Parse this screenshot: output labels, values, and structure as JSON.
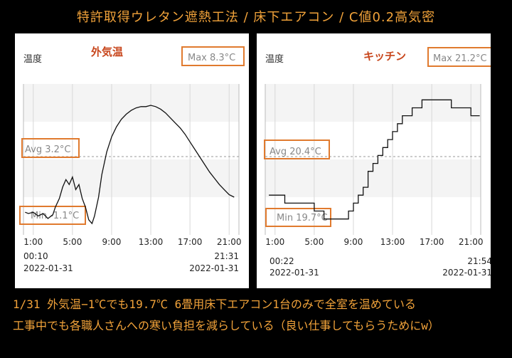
{
  "header": {
    "title": "特許取得ウレタン遮熱工法 / 床下エアコン / C値0.2高気密"
  },
  "caption": {
    "line1": "1/31  外気温−1℃でも19.7℃  6畳用床下エアコン1台のみで全室を温めている",
    "line2": "工事中でも各職人さんへの寒い負担を減らしている（良い仕事してもらうためにw）"
  },
  "colors": {
    "accent": "#f2a33a",
    "box_border": "#e07a2e",
    "panel_title": "#c8461c",
    "line": "#111111"
  },
  "chart_data": [
    {
      "type": "line",
      "title": "外気温",
      "ylabel": "温度",
      "max_label": "Max 8.3°C",
      "avg_label": "Avg 3.2°C",
      "min_label": "Min -1.1°C",
      "x_ticks": [
        "1:00",
        "5:00",
        "9:00",
        "13:00",
        "17:00",
        "21:00"
      ],
      "start_time": "00:10",
      "start_date": "2022-01-31",
      "end_time": "21:31",
      "end_date": "2022-01-31",
      "max": 8.3,
      "avg": 3.2,
      "min": -1.1,
      "x": [
        "00:10",
        "00:30",
        "01:00",
        "01:30",
        "02:00",
        "02:30",
        "03:00",
        "03:15",
        "03:40",
        "04:00",
        "04:20",
        "04:40",
        "05:00",
        "05:20",
        "05:40",
        "06:00",
        "06:20",
        "06:40",
        "07:00",
        "07:15",
        "07:40",
        "08:00",
        "08:30",
        "09:00",
        "09:30",
        "10:00",
        "10:30",
        "11:00",
        "11:30",
        "12:00",
        "12:30",
        "13:00",
        "13:30",
        "14:00",
        "14:30",
        "15:00",
        "15:30",
        "16:00",
        "16:30",
        "17:00",
        "17:30",
        "18:00",
        "18:30",
        "19:00",
        "19:30",
        "20:00",
        "20:30",
        "21:00",
        "21:31"
      ],
      "y": [
        -0.2,
        -0.3,
        -0.2,
        -0.5,
        -0.3,
        -0.7,
        -0.4,
        0.2,
        0.9,
        1.8,
        2.4,
        2.0,
        2.6,
        1.6,
        2.0,
        0.9,
        0.2,
        -0.8,
        -1.1,
        -0.5,
        1.0,
        2.8,
        4.6,
        5.8,
        6.6,
        7.2,
        7.6,
        7.9,
        8.1,
        8.2,
        8.2,
        8.3,
        8.2,
        8.0,
        7.7,
        7.3,
        6.9,
        6.5,
        6.0,
        5.4,
        4.8,
        4.2,
        3.6,
        3.0,
        2.5,
        2.0,
        1.6,
        1.2,
        1.0
      ],
      "ylim": [
        -2,
        10
      ]
    },
    {
      "type": "line",
      "title": "キッチン",
      "ylabel": "温度",
      "max_label": "Max 21.2°C",
      "avg_label": "Avg 20.4°C",
      "min_label": "Min 19.7°C",
      "x_ticks": [
        "1:00",
        "5:00",
        "9:00",
        "13:00",
        "17:00",
        "21:00"
      ],
      "start_time": "00:22",
      "start_date": "2022-01-31",
      "end_time": "21:54",
      "end_date": "2022-01-31",
      "max": 21.2,
      "avg": 20.4,
      "min": 19.7,
      "x": [
        "00:22",
        "01:00",
        "02:00",
        "03:00",
        "04:00",
        "05:00",
        "06:00",
        "07:00",
        "08:00",
        "08:30",
        "09:00",
        "09:30",
        "10:00",
        "10:30",
        "11:00",
        "11:30",
        "12:00",
        "12:30",
        "13:00",
        "13:30",
        "14:00",
        "14:30",
        "15:00",
        "15:30",
        "16:00",
        "17:00",
        "18:00",
        "19:00",
        "20:00",
        "21:00",
        "21:54"
      ],
      "y": [
        20.0,
        20.0,
        19.9,
        19.9,
        19.9,
        19.8,
        19.7,
        19.7,
        19.7,
        19.8,
        19.9,
        20.0,
        20.1,
        20.3,
        20.4,
        20.5,
        20.6,
        20.7,
        20.8,
        20.9,
        21.0,
        21.0,
        21.1,
        21.1,
        21.2,
        21.2,
        21.2,
        21.1,
        21.1,
        21.0,
        21.0
      ],
      "ylim": [
        19.5,
        21.4
      ]
    }
  ]
}
